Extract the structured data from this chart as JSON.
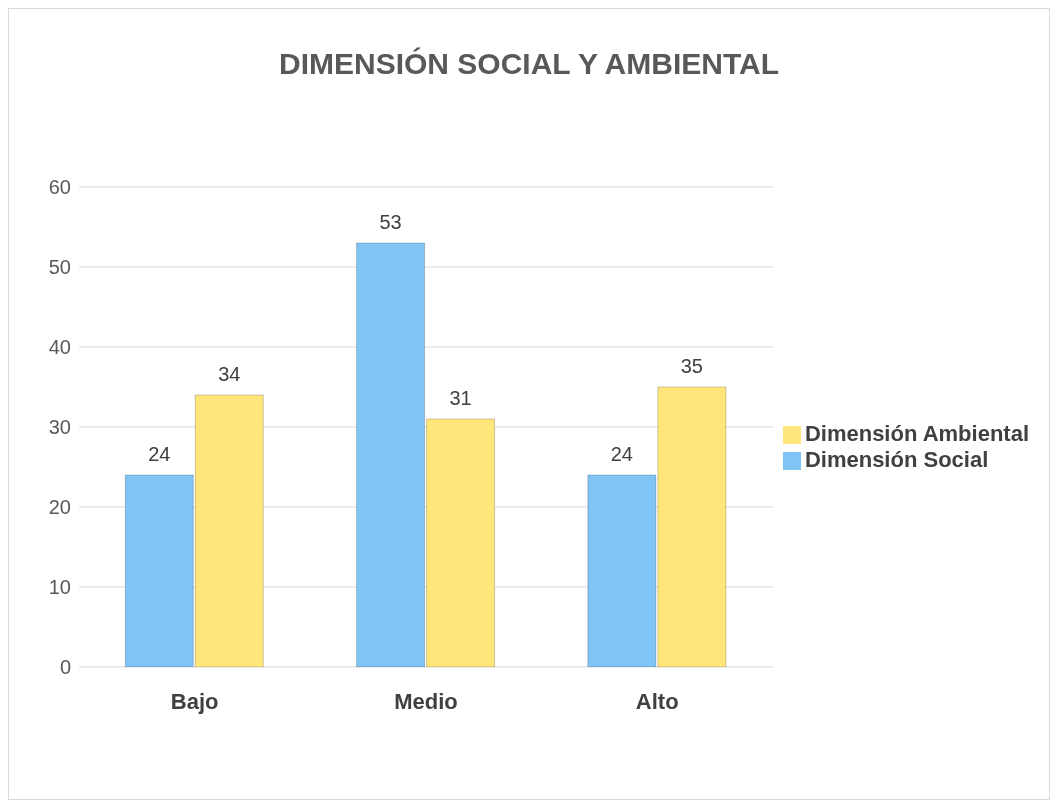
{
  "chart_data": {
    "type": "bar",
    "title": "DIMENSIÓN SOCIAL Y AMBIENTAL",
    "categories": [
      "Bajo",
      "Medio",
      "Alto"
    ],
    "series": [
      {
        "name": "Dimensión Social",
        "color": "#7fc4f5",
        "values": [
          24,
          53,
          24
        ]
      },
      {
        "name": "Dimensión Ambiental",
        "color": "#ffe57a",
        "values": [
          34,
          31,
          35
        ]
      }
    ],
    "ylim": [
      0,
      60
    ],
    "yticks": [
      0,
      10,
      20,
      30,
      40,
      50,
      60
    ],
    "grid": "y",
    "legend": "right",
    "data_labels": true
  }
}
